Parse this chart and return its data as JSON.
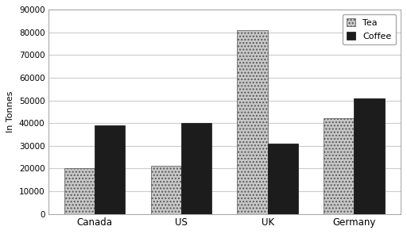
{
  "categories": [
    "Canada",
    "US",
    "UK",
    "Germany"
  ],
  "tea_values": [
    20000,
    21000,
    81000,
    42000
  ],
  "coffee_values": [
    39000,
    40000,
    31000,
    51000
  ],
  "ylabel": "In Tonnes",
  "ylim": [
    0,
    90000
  ],
  "yticks": [
    0,
    10000,
    20000,
    30000,
    40000,
    50000,
    60000,
    70000,
    80000,
    90000
  ],
  "tea_color": "#c8c8c8",
  "tea_hatch": "....",
  "coffee_color": "#1c1c1c",
  "legend_labels": [
    "Tea",
    "Coffee"
  ],
  "bar_width": 0.35,
  "background_color": "#ffffff",
  "grid_color": "#cccccc"
}
